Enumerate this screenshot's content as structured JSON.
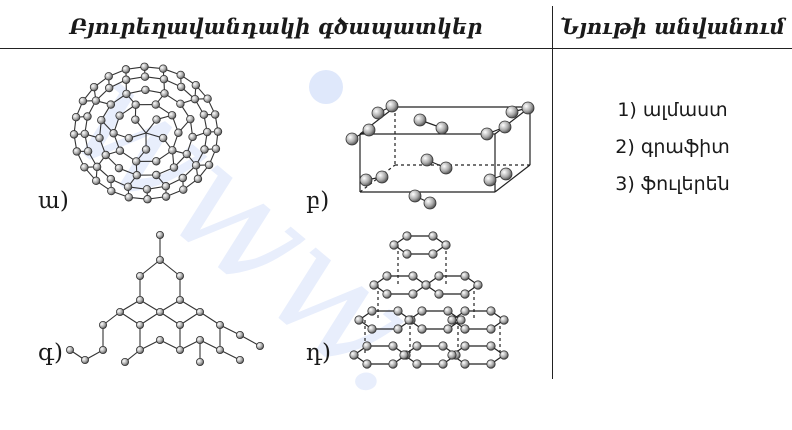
{
  "header": {
    "left": "Բյուրեղավանդակի գծապատկեր",
    "right": "Նյութի անվանում"
  },
  "labels": {
    "a": "ա)",
    "b": "բ)",
    "g": "գ)",
    "d": "դ)"
  },
  "substances": [
    "1) ալմաստ",
    "2) գրաֆիտ",
    "3) ֆուլերեն"
  ],
  "watermark": "www."
}
